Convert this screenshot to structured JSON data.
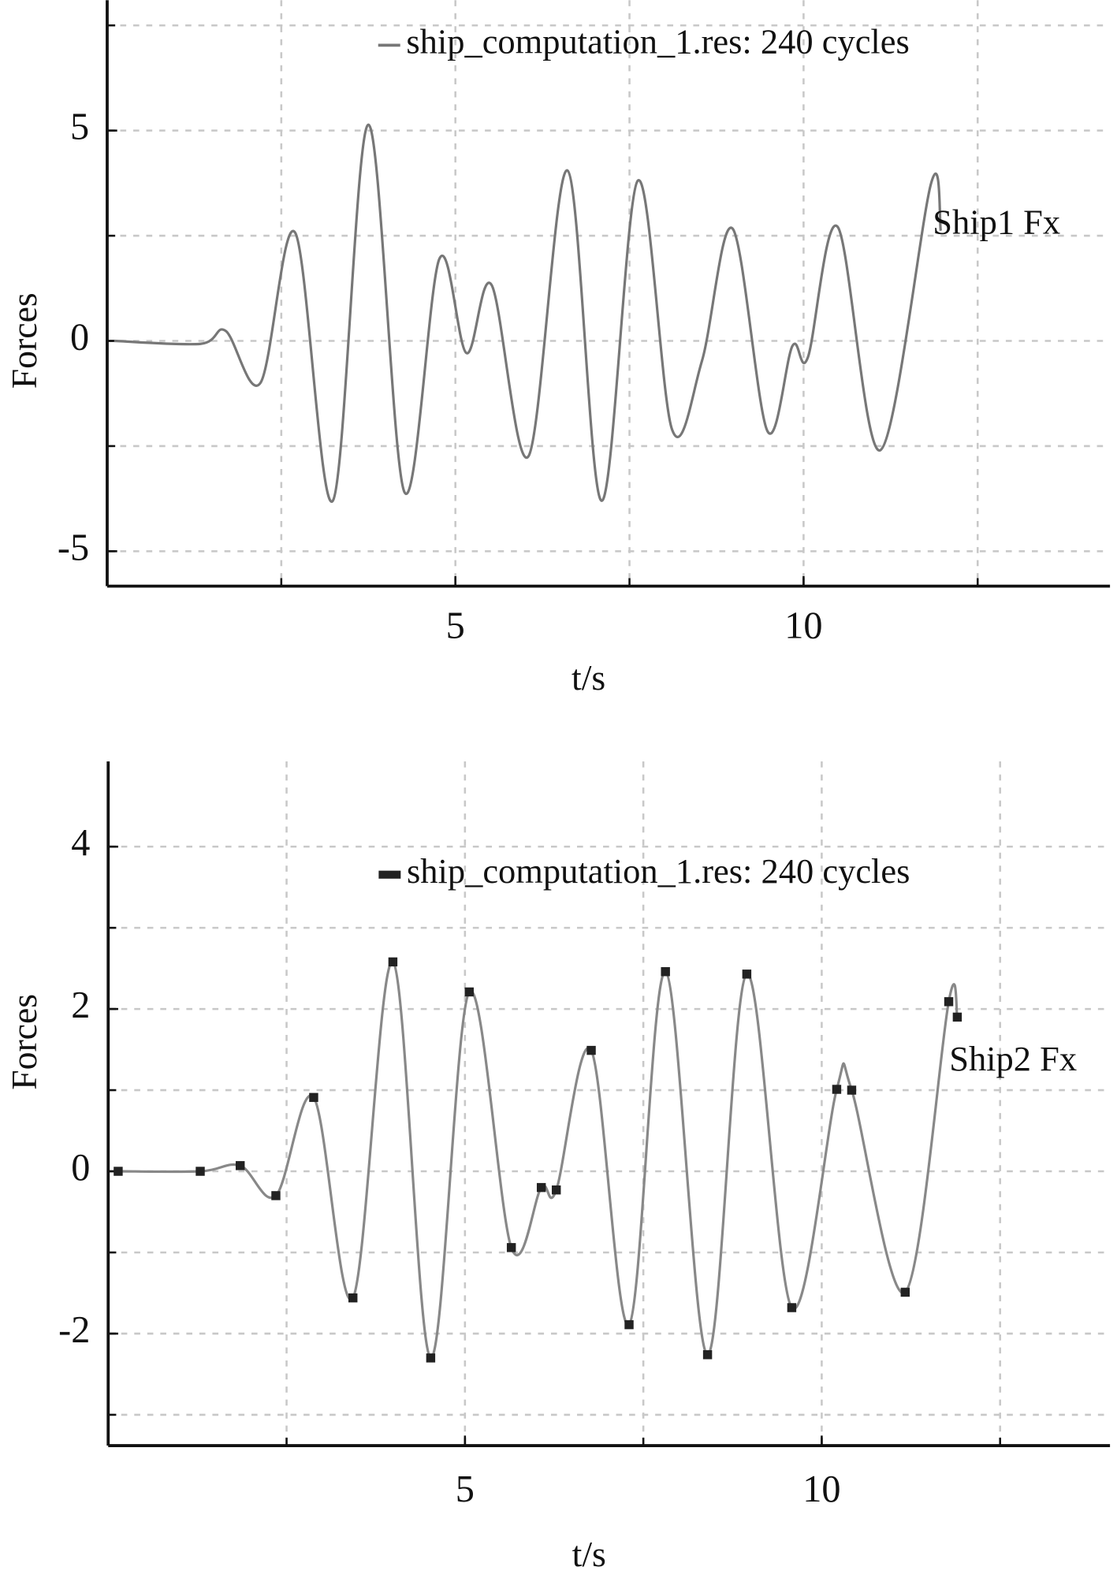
{
  "chart_data": [
    {
      "type": "line",
      "xlabel": "t/s",
      "ylabel": "Forces",
      "annotation": "Ship1 Fx",
      "legend": "upper center",
      "xlim": [
        0,
        14.4
      ],
      "ylim": [
        -5.83,
        8.1
      ],
      "xticks": [
        5,
        10
      ],
      "yticks": [
        -5,
        0,
        5
      ],
      "xgrid": [
        2.5,
        5,
        7.5,
        10,
        12.5
      ],
      "ygrid": [
        -5,
        -2.5,
        0,
        2.5,
        5,
        7.5
      ],
      "grid": true,
      "x": [
        0.1,
        1.34,
        1.7,
        2.2,
        2.7,
        3.24,
        3.75,
        4.27,
        4.77,
        5.16,
        5.52,
        6.05,
        6.61,
        7.1,
        7.62,
        8.11,
        8.54,
        8.98,
        9.48,
        9.84,
        10.06,
        10.49,
        11.1,
        11.83,
        11.97
      ],
      "series": [
        {
          "name": "ship_computation_1.res: 240 cycles",
          "color": "#777777",
          "marker": false,
          "values": [
            0,
            -0.07,
            0.24,
            -1.0,
            2.57,
            -3.8,
            5.14,
            -3.6,
            1.95,
            -0.29,
            1.33,
            -2.74,
            4.05,
            -3.8,
            3.81,
            -2.1,
            -0.48,
            2.67,
            -2.14,
            -0.12,
            -0.4,
            2.71,
            -2.6,
            3.74,
            2.62
          ]
        }
      ]
    },
    {
      "type": "line",
      "xlabel": "t/s",
      "ylabel": "Forces",
      "annotation": "Ship2 Fx",
      "legend": "upper center",
      "xlim": [
        0,
        14.04
      ],
      "ylim": [
        -3.38,
        5.05
      ],
      "xticks": [
        5,
        10
      ],
      "yticks": [
        -2,
        0,
        2,
        4
      ],
      "xgrid": [
        2.5,
        5,
        7.5,
        10,
        12.5
      ],
      "ygrid": [
        -3,
        -2,
        -1,
        0,
        1,
        2,
        3,
        4
      ],
      "grid": true,
      "x": [
        0.14,
        1.29,
        1.85,
        2.35,
        2.88,
        3.43,
        3.99,
        4.52,
        5.06,
        5.65,
        6.07,
        6.28,
        6.77,
        7.3,
        7.81,
        8.4,
        8.95,
        9.58,
        10.21,
        10.42,
        11.17,
        11.78,
        11.9
      ],
      "series": [
        {
          "name": "ship_computation_1.res: 240 cycles",
          "color": "#888888",
          "marker": "#222222",
          "values": [
            0,
            0,
            0.07,
            -0.3,
            0.91,
            -1.56,
            2.58,
            -2.3,
            2.21,
            -0.94,
            -0.2,
            -0.23,
            1.49,
            -1.89,
            2.46,
            -2.26,
            2.43,
            -1.68,
            1.01,
            1.0,
            -1.49,
            2.09,
            1.9
          ]
        }
      ]
    }
  ]
}
